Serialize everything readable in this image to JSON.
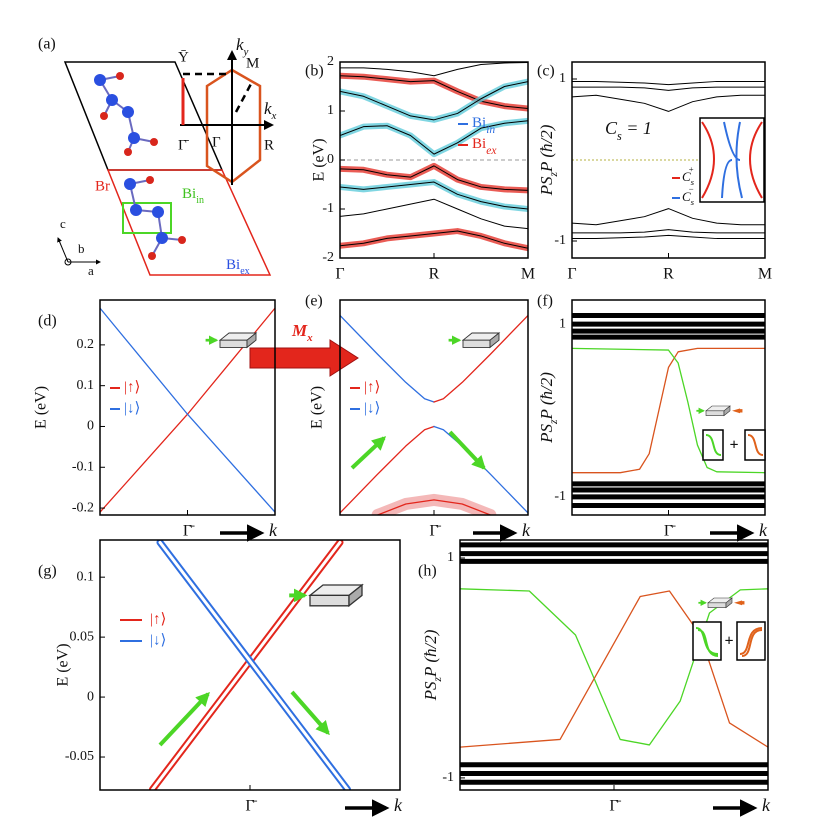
{
  "structure": {
    "label": "(a)",
    "ky": [
      "k",
      "y"
    ],
    "kx": [
      "k",
      "x"
    ],
    "ybar": "Ȳ",
    "m": "M",
    "gbar": "Γ̄",
    "g": "Γ",
    "r": "R",
    "br": "Br",
    "bi_in": [
      "Bi",
      "in"
    ],
    "bi_ex": [
      "Bi",
      "ex"
    ],
    "c": "c",
    "b": "b",
    "a": "a"
  },
  "arrow_label": [
    "M",
    "x"
  ],
  "chart_data": [
    {
      "type": "line",
      "label": "(b)",
      "ylabel": "E (eV)",
      "ylim": [
        -2,
        2
      ],
      "yticks": [
        2,
        1,
        0,
        -1,
        -2
      ],
      "xlim": [
        0,
        2
      ],
      "xticks": [
        {
          "value": 0,
          "label": "Γ"
        },
        {
          "value": 1,
          "label": "R"
        },
        {
          "value": 2,
          "label": "M"
        }
      ],
      "x": [
        0,
        0.25,
        0.5,
        0.75,
        1,
        1.25,
        1.5,
        1.75,
        2
      ],
      "legend": [
        {
          "name": [
            "Bi",
            "in"
          ],
          "color": "#2f6fe0"
        },
        {
          "name": [
            "Bi",
            "ex"
          ],
          "color": "#e3261c"
        }
      ],
      "series": [
        {
          "color": "#000000",
          "values": [
            1.88,
            1.88,
            1.85,
            1.8,
            1.72,
            1.85,
            1.95,
            1.98,
            1.99
          ]
        },
        {
          "color": "#000000",
          "glow": "#e3261c",
          "values": [
            1.72,
            1.7,
            1.65,
            1.6,
            1.62,
            1.4,
            1.2,
            1.1,
            1.05
          ]
        },
        {
          "color": "#000000",
          "glow": "#55c8d8",
          "values": [
            1.4,
            1.3,
            1.1,
            0.9,
            0.82,
            0.95,
            1.25,
            1.5,
            1.6
          ]
        },
        {
          "color": "#000000",
          "glow": "#55c8d8",
          "values": [
            0.5,
            0.68,
            0.7,
            0.5,
            0.12,
            0.35,
            0.65,
            0.75,
            0.8
          ]
        },
        {
          "color": "#000000",
          "glow": "#e3261c",
          "values": [
            -0.18,
            -0.2,
            -0.3,
            -0.35,
            -0.12,
            -0.4,
            -0.55,
            -0.6,
            -0.62
          ]
        },
        {
          "color": "#000000",
          "glow": "#55c8d8",
          "values": [
            -0.55,
            -0.6,
            -0.55,
            -0.5,
            -0.45,
            -0.7,
            -0.85,
            -0.95,
            -1.0
          ]
        },
        {
          "color": "#000000",
          "values": [
            -1.15,
            -1.1,
            -1.0,
            -0.9,
            -0.8,
            -1.0,
            -1.2,
            -1.35,
            -1.4
          ]
        },
        {
          "color": "#000000",
          "glow": "#e3261c",
          "values": [
            -1.75,
            -1.7,
            -1.6,
            -1.55,
            -1.5,
            -1.45,
            -1.55,
            -1.7,
            -1.8
          ]
        }
      ]
    },
    {
      "type": "line",
      "label": "(c)",
      "ylabel": [
        "PS",
        "z",
        "P (ħ/2)"
      ],
      "ylim": [
        -1.21,
        1.21
      ],
      "yticks": [
        1,
        -1
      ],
      "xlim": [
        0,
        2
      ],
      "xticks": [
        {
          "value": 0,
          "label": "Γ"
        },
        {
          "value": 1,
          "label": "R"
        },
        {
          "value": 2,
          "label": "M"
        }
      ],
      "x": [
        0,
        0.25,
        0.5,
        0.75,
        1,
        1.25,
        1.5,
        1.75,
        2
      ],
      "inset": {
        "title": [
          "C",
          "s",
          " = 1"
        ],
        "entries": [
          {
            "name": [
              "C",
              "s",
              "+"
            ],
            "color": "#e3261c"
          },
          {
            "name": [
              "C",
              "s",
              "−"
            ],
            "color": "#2f6fe0"
          }
        ]
      },
      "series": [
        {
          "color": "#000000",
          "values": [
            0.97,
            0.97,
            0.96,
            0.95,
            0.93,
            0.95,
            0.97,
            0.97,
            0.97
          ]
        },
        {
          "color": "#000000",
          "values": [
            0.9,
            0.9,
            0.9,
            0.89,
            0.86,
            0.89,
            0.9,
            0.9,
            0.9
          ]
        },
        {
          "color": "#000000",
          "values": [
            0.78,
            0.8,
            0.75,
            0.7,
            0.6,
            0.72,
            0.78,
            0.8,
            0.8
          ]
        },
        {
          "color": "#000000",
          "values": [
            -0.97,
            -0.97,
            -0.96,
            -0.95,
            -0.93,
            -0.95,
            -0.97,
            -0.97,
            -0.97
          ]
        },
        {
          "color": "#000000",
          "values": [
            -0.9,
            -0.9,
            -0.9,
            -0.89,
            -0.86,
            -0.89,
            -0.9,
            -0.9,
            -0.9
          ]
        },
        {
          "color": "#000000",
          "values": [
            -0.78,
            -0.8,
            -0.75,
            -0.7,
            -0.6,
            -0.72,
            -0.78,
            -0.8,
            -0.8
          ]
        }
      ]
    },
    {
      "type": "line",
      "label": "(d)",
      "ylabel": "E (eV)",
      "ylim": [
        -0.217,
        0.31
      ],
      "yticks": [
        0.2,
        0.1,
        0,
        -0.1,
        -0.2
      ],
      "xlim": [
        -1,
        1
      ],
      "xticks": [
        {
          "value": 0,
          "label": "Γ̄"
        }
      ],
      "xlabel": "k",
      "legend": [
        {
          "name": "|↑⟩",
          "color": "#e3261c"
        },
        {
          "name": "|↓⟩",
          "color": "#2f6fe0"
        }
      ],
      "series": [
        {
          "color": "#e3261c",
          "x": [
            -1,
            -0.5,
            0,
            0.5,
            1
          ],
          "values": [
            -0.21,
            -0.09,
            0.03,
            0.16,
            0.29
          ]
        },
        {
          "color": "#2f6fe0",
          "x": [
            -1,
            -0.5,
            0,
            0.5,
            1
          ],
          "values": [
            0.29,
            0.16,
            0.03,
            -0.09,
            -0.21
          ]
        }
      ]
    },
    {
      "type": "line",
      "label": "(e)",
      "ylabel": "E (eV)",
      "ylim": [
        -0.217,
        0.31
      ],
      "yticks": [],
      "xlim": [
        -1,
        1
      ],
      "xticks": [
        {
          "value": 0,
          "label": "Γ̄"
        }
      ],
      "xlabel": "k",
      "legend": [
        {
          "name": "|↑⟩",
          "color": "#e3261c"
        },
        {
          "name": "|↓⟩",
          "color": "#2f6fe0"
        }
      ],
      "series": [
        {
          "color": "#e3261c",
          "glow": "#f0a0a0",
          "x": [
            -0.6,
            -0.3,
            0,
            0.3,
            0.6
          ],
          "values": [
            -0.217,
            -0.19,
            -0.18,
            -0.19,
            -0.217
          ]
        },
        {
          "color": "#2f6fe0",
          "x": [
            -1,
            -0.6,
            -0.3,
            -0.1,
            0
          ],
          "values": [
            0.272,
            0.177,
            0.108,
            0.068,
            0.06
          ]
        },
        {
          "color": "#e3261c",
          "x": [
            0,
            0.1,
            0.3,
            0.6,
            1
          ],
          "values": [
            0.06,
            0.068,
            0.108,
            0.177,
            0.272
          ]
        },
        {
          "color": "#e3261c",
          "x": [
            -1,
            -0.6,
            -0.3,
            -0.1,
            0
          ],
          "values": [
            -0.212,
            -0.117,
            -0.048,
            -0.008,
            0
          ]
        },
        {
          "color": "#2f6fe0",
          "x": [
            0,
            0.1,
            0.3,
            0.6,
            1
          ],
          "values": [
            0,
            -0.008,
            -0.048,
            -0.117,
            -0.212
          ]
        }
      ]
    },
    {
      "type": "line",
      "label": "(f)",
      "ylabel": [
        "PS",
        "z",
        "P (ħ/2)"
      ],
      "ylim": [
        -1.21,
        1.28
      ],
      "yticks": [
        1,
        -1
      ],
      "xlim": [
        -1,
        1
      ],
      "xticks": [
        {
          "value": 0,
          "label": "Γ̄"
        }
      ],
      "xlabel": "k",
      "series": [
        {
          "color": "#000000",
          "band": true,
          "x": [
            -1,
            1
          ],
          "values": [
            1.1,
            1.1
          ]
        },
        {
          "color": "#000000",
          "band": true,
          "x": [
            -1,
            1
          ],
          "values": [
            1.0,
            1.0
          ]
        },
        {
          "color": "#000000",
          "band": true,
          "x": [
            -1,
            1
          ],
          "values": [
            0.92,
            0.92
          ]
        },
        {
          "color": "#000000",
          "band": true,
          "x": [
            -1,
            1
          ],
          "values": [
            0.85,
            0.85
          ]
        },
        {
          "color": "#000000",
          "band": true,
          "x": [
            -1,
            1
          ],
          "values": [
            -0.85,
            -0.85
          ]
        },
        {
          "color": "#000000",
          "band": true,
          "x": [
            -1,
            1
          ],
          "values": [
            -0.92,
            -0.92
          ]
        },
        {
          "color": "#000000",
          "band": true,
          "x": [
            -1,
            1
          ],
          "values": [
            -1.0,
            -1.0
          ]
        },
        {
          "color": "#000000",
          "band": true,
          "x": [
            -1,
            1
          ],
          "values": [
            -1.1,
            -1.1
          ]
        },
        {
          "color": "#d9541e",
          "x": [
            -1,
            -0.5,
            -0.3,
            -0.2,
            -0.1,
            0,
            0.1,
            0.3,
            1
          ],
          "values": [
            -0.72,
            -0.72,
            -0.68,
            -0.5,
            0,
            0.5,
            0.68,
            0.72,
            0.72
          ]
        },
        {
          "color": "#4cd626",
          "x": [
            -1,
            0,
            0.1,
            0.2,
            0.3,
            0.4,
            0.5,
            1
          ],
          "values": [
            0.72,
            0.7,
            0.55,
            0.1,
            -0.4,
            -0.66,
            -0.71,
            -0.72
          ]
        }
      ]
    },
    {
      "type": "line",
      "label": "(g)",
      "ylabel": "E (eV)",
      "ylim": [
        -0.0775,
        0.131
      ],
      "yticks": [
        0.1,
        0.05,
        0,
        -0.05
      ],
      "xlim": [
        -1,
        1
      ],
      "xticks": [
        {
          "value": 0,
          "label": "Γ̄"
        }
      ],
      "xlabel": "k",
      "legend": [
        {
          "name": "|↑⟩",
          "color": "#e3261c"
        },
        {
          "name": "|↓⟩",
          "color": "#2f6fe0"
        }
      ],
      "series": [
        {
          "color": "#e3261c",
          "double": true,
          "x": [
            -0.65,
            0.6
          ],
          "values": [
            -0.077,
            0.129
          ]
        },
        {
          "color": "#2f6fe0",
          "double": true,
          "x": [
            -0.6,
            0.65
          ],
          "values": [
            0.129,
            -0.077
          ]
        }
      ]
    },
    {
      "type": "line",
      "label": "(h)",
      "ylabel": [
        "PS",
        "z",
        "P (ħ/2)"
      ],
      "ylim": [
        -1.11,
        1.164
      ],
      "yticks": [
        1,
        -1
      ],
      "xlim": [
        -1,
        1
      ],
      "xticks": [
        {
          "value": 0,
          "label": "Γ̄"
        }
      ],
      "xlabel": "k",
      "series": [
        {
          "color": "#000000",
          "band": true,
          "x": [
            -1,
            1
          ],
          "values": [
            1.12,
            1.12
          ]
        },
        {
          "color": "#000000",
          "band": true,
          "x": [
            -1,
            1
          ],
          "values": [
            1.04,
            1.04
          ]
        },
        {
          "color": "#000000",
          "band": true,
          "x": [
            -1,
            1
          ],
          "values": [
            0.97,
            0.97
          ]
        },
        {
          "color": "#000000",
          "band": true,
          "x": [
            -1,
            1
          ],
          "values": [
            -0.88,
            -0.88
          ]
        },
        {
          "color": "#000000",
          "band": true,
          "x": [
            -1,
            1
          ],
          "values": [
            -0.96,
            -0.96
          ]
        },
        {
          "color": "#000000",
          "band": true,
          "x": [
            -1,
            1
          ],
          "values": [
            -1.04,
            -1.04
          ]
        },
        {
          "color": "#4cd626",
          "x": [
            -1,
            -0.55,
            -0.25,
            0.04,
            0.23,
            0.43,
            0.62,
            0.82,
            1
          ],
          "values": [
            0.72,
            0.7,
            0.3,
            -0.65,
            -0.7,
            -0.3,
            0.5,
            0.71,
            0.72
          ]
        },
        {
          "color": "#d9541e",
          "x": [
            -1,
            -0.35,
            -0.09,
            0.17,
            0.36,
            0.56,
            0.75,
            1
          ],
          "values": [
            -0.72,
            -0.65,
            0,
            0.65,
            0.7,
            0.3,
            -0.5,
            -0.72
          ]
        }
      ]
    }
  ]
}
